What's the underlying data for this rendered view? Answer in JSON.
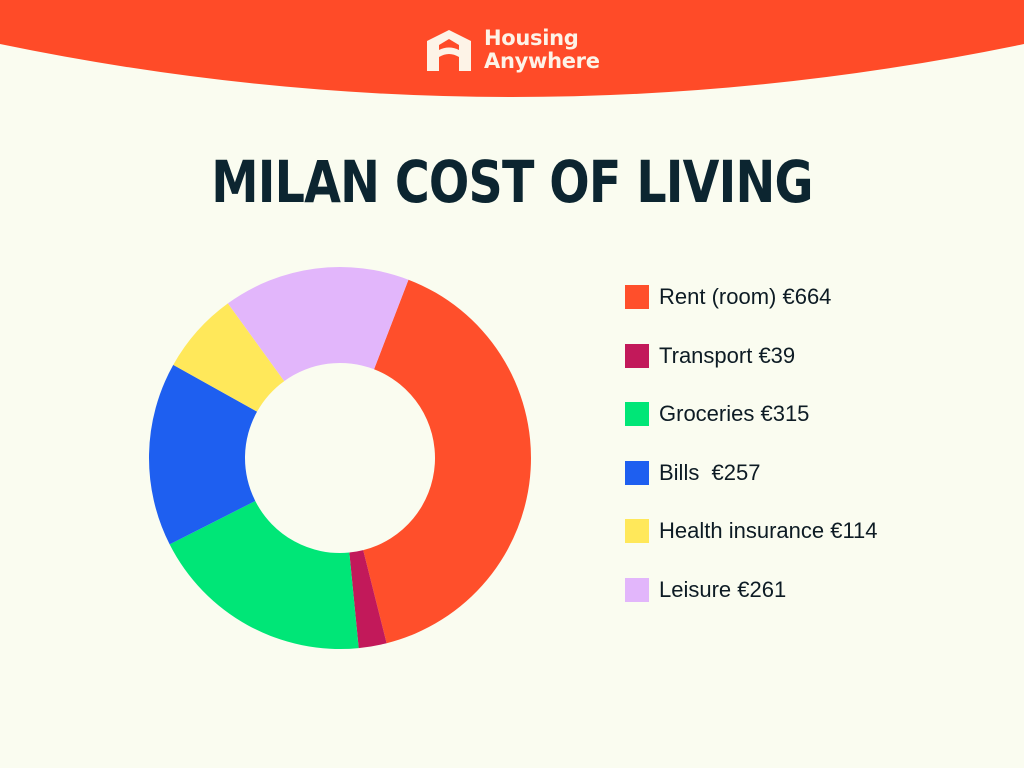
{
  "brand": {
    "name_line1": "Housing",
    "name_line2": "Anywhere",
    "icon": "housing-anywhere-logo-icon",
    "header_color": "#ff4b28",
    "logo_color": "#fdf3e7"
  },
  "colors": {
    "background": "#fafcf0",
    "title": "#0c2530",
    "legend_text": "#0d1b24"
  },
  "chart_data": {
    "type": "pie",
    "style": "donut",
    "title": "MILAN COST OF LIVING",
    "currency": "€",
    "legend_position": "right",
    "slices": [
      {
        "label": "Rent (room) €664",
        "name": "Rent (room)",
        "value": 664,
        "color": "#ff4f2b"
      },
      {
        "label": "Transport €39",
        "name": "Transport",
        "value": 39,
        "color": "#c2195a"
      },
      {
        "label": "Groceries €315",
        "name": "Groceries",
        "value": 315,
        "color": "#00e677"
      },
      {
        "label": "Bills  €257",
        "name": "Bills",
        "value": 257,
        "color": "#1e5ff0"
      },
      {
        "label": "Health insurance €114",
        "name": "Health insurance",
        "value": 114,
        "color": "#ffe85a"
      },
      {
        "label": "Leisure €261",
        "name": "Leisure",
        "value": 261,
        "color": "#e2b6fb"
      }
    ]
  }
}
